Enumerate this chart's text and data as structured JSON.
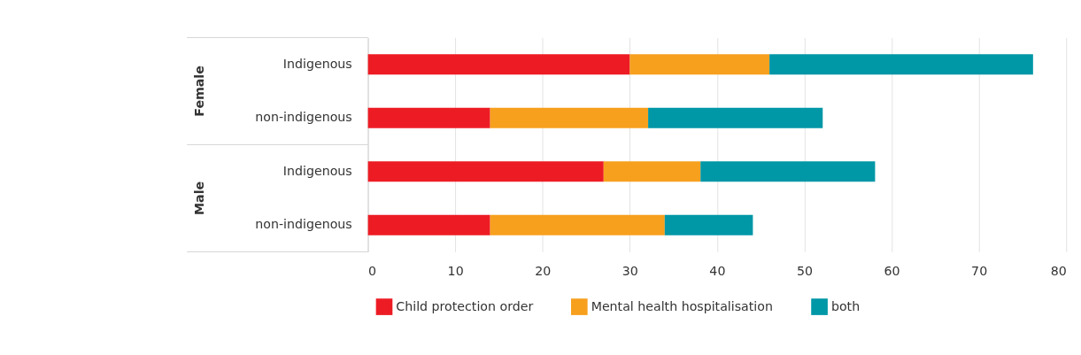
{
  "chart_data": {
    "type": "bar",
    "orientation": "horizontal",
    "stacked": true,
    "categories": [
      "Indigenous",
      "non-indigenous",
      "Indigenous",
      "non-indigenous"
    ],
    "series": [
      {
        "name": "Child protection order",
        "color": "#ed1c24",
        "values": [
          30,
          14,
          27,
          14
        ]
      },
      {
        "name": "Mental health hospitalisation",
        "color": "#f7a01e",
        "values": [
          16,
          18.1,
          11.1,
          20
        ]
      },
      {
        "name": "both",
        "color": "#0097a7",
        "values": [
          30.2,
          20,
          20,
          10.1
        ]
      }
    ],
    "xlim": [
      0,
      80
    ],
    "xticks": [
      0,
      10,
      20,
      30,
      40,
      50,
      60,
      70,
      80
    ],
    "grid": "x",
    "legend": "bottom",
    "annotations": [
      "Female",
      "Male"
    ]
  }
}
